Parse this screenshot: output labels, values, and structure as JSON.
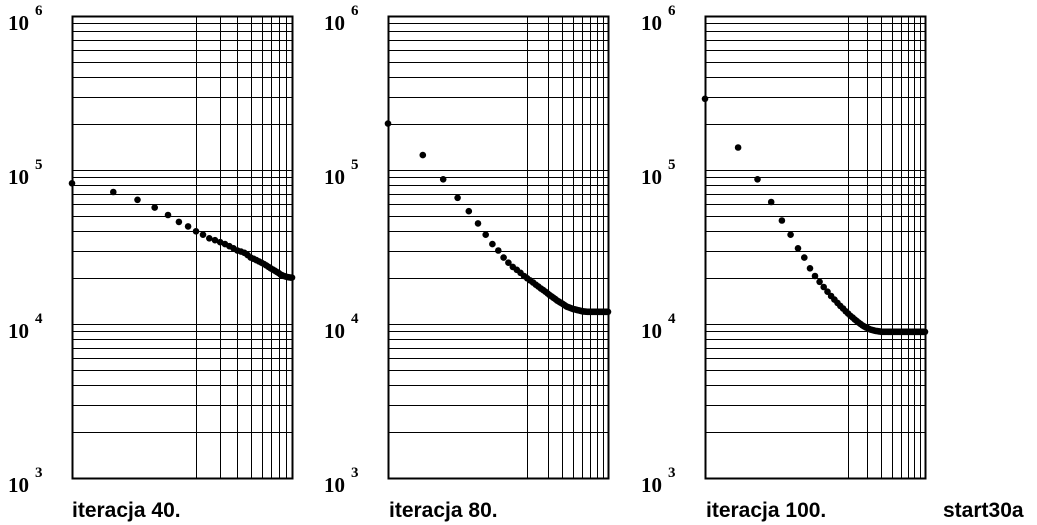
{
  "figure_label": "start30a",
  "chart_data": [
    {
      "type": "scatter",
      "caption": "iteracja 40.",
      "y_scale": "log",
      "y_range": [
        1000,
        1000000
      ],
      "y_ticks": [
        {
          "base": "10",
          "exp": "6"
        },
        {
          "base": "10",
          "exp": "5"
        },
        {
          "base": "10",
          "exp": "4"
        },
        {
          "base": "10",
          "exp": "3"
        }
      ],
      "x_scale": "log",
      "x_range": [
        1,
        40
      ],
      "grid": true,
      "x": [
        1,
        2,
        3,
        4,
        5,
        6,
        7,
        8,
        9,
        10,
        11,
        12,
        13,
        14,
        15,
        16,
        17,
        18,
        19,
        20,
        21,
        22,
        23,
        24,
        25,
        26,
        27,
        28,
        29,
        30,
        31,
        32,
        33,
        34,
        35,
        36,
        37,
        38,
        39,
        40
      ],
      "y": [
        82000,
        72000,
        64000,
        57000,
        51000,
        46000,
        43000,
        40000,
        38000,
        36000,
        35000,
        34000,
        33000,
        32000,
        31000,
        30000,
        29500,
        29000,
        28000,
        27000,
        26500,
        26000,
        25500,
        25000,
        24500,
        24000,
        23500,
        23000,
        22600,
        22200,
        21800,
        21400,
        21000,
        20700,
        20500,
        20300,
        20200,
        20100,
        20000,
        20000
      ]
    },
    {
      "type": "scatter",
      "caption": "iteracja 80.",
      "y_scale": "log",
      "y_range": [
        1000,
        1000000
      ],
      "y_ticks": [
        {
          "base": "10",
          "exp": "6"
        },
        {
          "base": "10",
          "exp": "5"
        },
        {
          "base": "10",
          "exp": "4"
        },
        {
          "base": "10",
          "exp": "3"
        }
      ],
      "x_scale": "log",
      "x_range": [
        1,
        80
      ],
      "grid": true,
      "x": [
        1,
        2,
        3,
        4,
        5,
        6,
        7,
        8,
        9,
        10,
        11,
        12,
        13,
        14,
        15,
        16,
        17,
        18,
        19,
        20,
        21,
        22,
        23,
        24,
        25,
        26,
        27,
        28,
        29,
        30,
        31,
        32,
        33,
        34,
        35,
        36,
        37,
        38,
        39,
        40,
        41,
        42,
        43,
        44,
        45,
        46,
        47,
        48,
        49,
        50,
        51,
        52,
        53,
        54,
        55,
        56,
        57,
        58,
        59,
        60,
        61,
        62,
        63,
        64,
        65,
        66,
        67,
        68,
        69,
        70,
        71,
        72,
        73,
        74,
        75,
        76,
        77,
        78,
        79,
        80
      ],
      "y": [
        200000,
        125000,
        87000,
        66000,
        54000,
        45000,
        38000,
        33000,
        30000,
        27000,
        25000,
        23500,
        22500,
        21500,
        20500,
        19800,
        19200,
        18600,
        18000,
        17500,
        17000,
        16600,
        16200,
        15800,
        15400,
        15100,
        14800,
        14500,
        14200,
        14000,
        13800,
        13600,
        13400,
        13200,
        13000,
        12900,
        12800,
        12700,
        12600,
        12500,
        12450,
        12400,
        12350,
        12300,
        12250,
        12200,
        12150,
        12100,
        12080,
        12060,
        12040,
        12020,
        12000,
        12000,
        12000,
        12000,
        12000,
        12000,
        12000,
        12000,
        12000,
        12000,
        12000,
        12000,
        12000,
        12000,
        12000,
        12000,
        12000,
        12000,
        12000,
        12000,
        12000,
        12000,
        12000,
        12000,
        12000,
        12000,
        12000,
        12000
      ]
    },
    {
      "type": "scatter",
      "caption": "iteracja 100.",
      "y_scale": "log",
      "y_range": [
        1000,
        1000000
      ],
      "y_ticks": [
        {
          "base": "10",
          "exp": "6"
        },
        {
          "base": "10",
          "exp": "5"
        },
        {
          "base": "10",
          "exp": "4"
        },
        {
          "base": "10",
          "exp": "3"
        }
      ],
      "x_scale": "log",
      "x_range": [
        1,
        100
      ],
      "grid": true,
      "x": [
        1,
        2,
        3,
        4,
        5,
        6,
        7,
        8,
        9,
        10,
        11,
        12,
        13,
        14,
        15,
        16,
        17,
        18,
        19,
        20,
        21,
        22,
        23,
        24,
        25,
        26,
        27,
        28,
        29,
        30,
        31,
        32,
        33,
        34,
        35,
        36,
        37,
        38,
        39,
        40,
        41,
        42,
        43,
        44,
        45,
        46,
        47,
        48,
        49,
        50,
        51,
        52,
        53,
        54,
        55,
        56,
        57,
        58,
        59,
        60,
        61,
        62,
        63,
        64,
        65,
        66,
        67,
        68,
        69,
        70,
        71,
        72,
        73,
        74,
        75,
        76,
        77,
        78,
        79,
        80,
        81,
        82,
        83,
        84,
        85,
        86,
        87,
        88,
        89,
        90,
        91,
        92,
        93,
        94,
        95,
        96,
        97,
        98,
        99,
        100
      ],
      "y": [
        290000,
        140000,
        87000,
        62000,
        47000,
        38000,
        31000,
        27000,
        23000,
        20500,
        18800,
        17400,
        16200,
        15200,
        14400,
        13700,
        13100,
        12600,
        12100,
        11700,
        11300,
        11000,
        10700,
        10450,
        10200,
        10000,
        9800,
        9650,
        9500,
        9400,
        9300,
        9200,
        9150,
        9100,
        9050,
        9000,
        9000,
        8950,
        8950,
        8900,
        8900,
        8900,
        8900,
        8900,
        8900,
        8900,
        8900,
        8900,
        8900,
        8900,
        8900,
        8900,
        8900,
        8900,
        8900,
        8900,
        8900,
        8900,
        8900,
        8900,
        8900,
        8900,
        8900,
        8900,
        8900,
        8900,
        8900,
        8900,
        8900,
        8900,
        8900,
        8900,
        8900,
        8900,
        8900,
        8900,
        8900,
        8900,
        8900,
        8900,
        8900,
        8900,
        8900,
        8900,
        8900,
        8900,
        8900,
        8900,
        8900,
        8900,
        8900,
        8900,
        8900,
        8900,
        8900,
        8900,
        8900,
        8900,
        8900,
        8900
      ]
    }
  ]
}
